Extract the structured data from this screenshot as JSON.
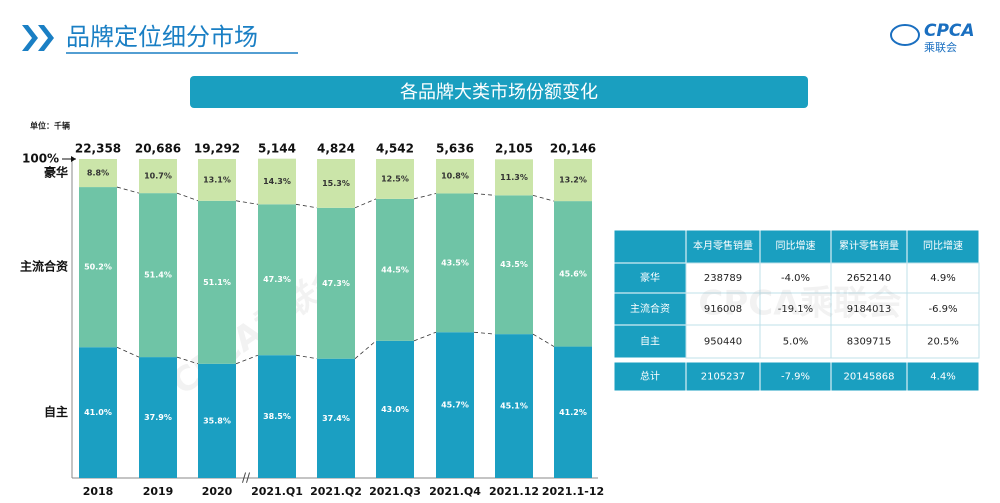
{
  "header": {
    "title": "品牌定位细分市场",
    "logo": {
      "text": "CPCA",
      "subtext": "乘联会"
    }
  },
  "watermark": "CPCA乘联会",
  "chart_data": {
    "type": "bar",
    "stacked": true,
    "title": "各品牌大类市场份额变化",
    "unit": "单位：千辆",
    "categories": [
      "2018",
      "2019",
      "2020",
      "2021.Q1",
      "2021.Q2",
      "2021.Q3",
      "2021.Q4",
      "2021.12",
      "2021.1-12"
    ],
    "series": [
      {
        "name": "自主",
        "color": "#1b9fc2",
        "values": [
          41.0,
          37.9,
          35.8,
          38.5,
          37.4,
          43.0,
          45.7,
          45.1,
          41.2
        ],
        "value_labels": [
          "41.0%",
          "37.9%",
          "35.8%",
          "38.5%",
          "37.4%",
          "43.0%",
          "45.7%",
          "45.1%",
          "41.2%"
        ]
      },
      {
        "name": "主流合资",
        "color": "#6fc4a6",
        "values": [
          50.2,
          51.4,
          51.1,
          47.3,
          47.3,
          44.5,
          43.5,
          43.5,
          45.6
        ],
        "value_labels": [
          "50.2%",
          "51.4%",
          "51.1%",
          "47.3%",
          "47.3%",
          "44.5%",
          "43.5%",
          "43.5%",
          "45.6%"
        ]
      },
      {
        "name": "豪华",
        "color": "#cbe5a9",
        "values": [
          8.8,
          10.7,
          13.1,
          14.3,
          15.3,
          12.5,
          10.8,
          11.3,
          13.2
        ],
        "value_labels": [
          "8.8%",
          "10.7%",
          "13.1%",
          "14.3%",
          "15.3%",
          "12.5%",
          "10.8%",
          "11.3%",
          "13.2%"
        ]
      }
    ],
    "totals": {
      "values": [
        22358,
        20686,
        19292,
        5144,
        4824,
        4542,
        5636,
        2105,
        20146
      ],
      "value_labels": [
        "22,358",
        "20,686",
        "19,292",
        "5,144",
        "4,824",
        "4,542",
        "5,636",
        "2,105",
        "20,146"
      ]
    },
    "ylim": [
      0,
      100
    ],
    "yticks": [
      {
        "value": 100,
        "label": "100%"
      }
    ]
  },
  "table": {
    "columns": [
      "本月零售销量",
      "同比增速",
      "累计零售销量",
      "同比增速"
    ],
    "rows": [
      {
        "label": "豪华",
        "cells": [
          "238789",
          "-4.0%",
          "2652140",
          "4.9%"
        ]
      },
      {
        "label": "主流合资",
        "cells": [
          "916008",
          "-19.1%",
          "9184013",
          "-6.9%"
        ]
      },
      {
        "label": "自主",
        "cells": [
          "950440",
          "5.0%",
          "8309715",
          "20.5%"
        ]
      },
      {
        "label": "总计",
        "cells": [
          "2105237",
          "-7.9%",
          "20145868",
          "4.4%"
        ]
      }
    ]
  }
}
